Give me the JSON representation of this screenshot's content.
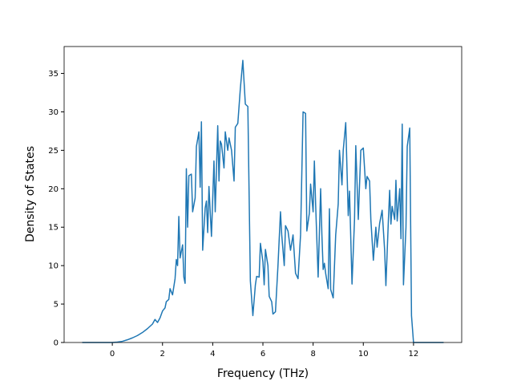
{
  "chart_data": {
    "type": "line",
    "xlabel": "Frequency (THz)",
    "ylabel": "Density of States",
    "x": [
      -1.2,
      -0.6,
      0,
      0.2,
      0.4,
      0.6,
      0.8,
      1.0,
      1.2,
      1.4,
      1.6,
      1.7,
      1.8,
      1.9,
      2.0,
      2.1,
      2.15,
      2.25,
      2.3,
      2.4,
      2.5,
      2.55,
      2.6,
      2.65,
      2.7,
      2.8,
      2.85,
      2.9,
      2.95,
      3.0,
      3.05,
      3.15,
      3.2,
      3.3,
      3.35,
      3.45,
      3.5,
      3.55,
      3.6,
      3.7,
      3.75,
      3.8,
      3.85,
      3.9,
      3.95,
      4.05,
      4.1,
      4.2,
      4.25,
      4.3,
      4.35,
      4.45,
      4.5,
      4.6,
      4.65,
      4.75,
      4.85,
      4.9,
      5.0,
      5.1,
      5.2,
      5.3,
      5.4,
      5.5,
      5.6,
      5.7,
      5.75,
      5.85,
      5.9,
      6.0,
      6.05,
      6.1,
      6.2,
      6.25,
      6.35,
      6.4,
      6.5,
      6.6,
      6.7,
      6.75,
      6.8,
      6.85,
      6.9,
      7.0,
      7.1,
      7.2,
      7.3,
      7.4,
      7.5,
      7.6,
      7.7,
      7.75,
      7.85,
      7.9,
      8.0,
      8.05,
      8.1,
      8.2,
      8.3,
      8.35,
      8.4,
      8.45,
      8.5,
      8.6,
      8.65,
      8.7,
      8.8,
      8.9,
      9.0,
      9.05,
      9.15,
      9.2,
      9.3,
      9.4,
      9.45,
      9.55,
      9.65,
      9.7,
      9.8,
      9.9,
      10.0,
      10.1,
      10.15,
      10.25,
      10.3,
      10.4,
      10.5,
      10.55,
      10.65,
      10.75,
      10.85,
      10.9,
      11.0,
      11.05,
      11.1,
      11.15,
      11.25,
      11.3,
      11.35,
      11.45,
      11.5,
      11.55,
      11.6,
      11.7,
      11.75,
      11.85,
      11.92,
      12.0,
      13.2
    ],
    "series": [
      {
        "color": "#1f77b4",
        "values": [
          0,
          0,
          0,
          0.05,
          0.15,
          0.35,
          0.6,
          0.9,
          1.3,
          1.8,
          2.4,
          3.0,
          2.6,
          3.2,
          4.1,
          4.5,
          5.3,
          5.6,
          7.0,
          6.2,
          8.3,
          10.8,
          10.0,
          16.4,
          11.0,
          12.7,
          8.5,
          7.7,
          22.6,
          15.0,
          21.7,
          21.9,
          17.0,
          18.8,
          25.5,
          27.4,
          20.2,
          28.7,
          12.0,
          17.5,
          18.4,
          14.3,
          20.3,
          17.0,
          13.8,
          23.6,
          17.0,
          28.2,
          21.0,
          26.2,
          25.8,
          22.7,
          27.4,
          25.0,
          26.6,
          25.0,
          21.0,
          28.0,
          28.5,
          33.0,
          36.7,
          31.0,
          30.7,
          8.0,
          3.5,
          7.5,
          8.6,
          8.5,
          12.9,
          10.5,
          7.5,
          12.1,
          10.0,
          6.0,
          5.3,
          3.7,
          4.0,
          10.0,
          17.0,
          14.0,
          12.0,
          10.0,
          15.2,
          14.5,
          12.0,
          14.0,
          9.0,
          8.3,
          14.0,
          30.0,
          29.8,
          14.5,
          16.8,
          20.6,
          17.0,
          23.6,
          18.0,
          8.5,
          20.0,
          14.0,
          9.5,
          10.3,
          9.0,
          7.0,
          17.4,
          6.9,
          5.8,
          14.0,
          18.0,
          25.0,
          20.5,
          25.0,
          28.6,
          16.5,
          19.7,
          7.6,
          16.0,
          25.6,
          16.0,
          25.0,
          25.3,
          20.0,
          21.6,
          21.0,
          16.0,
          10.7,
          15.0,
          12.4,
          15.5,
          17.2,
          12.0,
          7.4,
          16.0,
          19.8,
          15.4,
          17.7,
          16.0,
          21.1,
          15.8,
          20.0,
          13.5,
          28.4,
          7.5,
          15.0,
          25.5,
          27.9,
          3.5,
          0,
          0
        ]
      }
    ],
    "xlim": [
      -1.92,
      13.92
    ],
    "ylim": [
      0,
      38.5
    ],
    "xticks": [
      0,
      2,
      4,
      6,
      8,
      10,
      12
    ],
    "yticks": [
      0,
      5,
      10,
      15,
      20,
      25,
      30,
      35
    ]
  }
}
